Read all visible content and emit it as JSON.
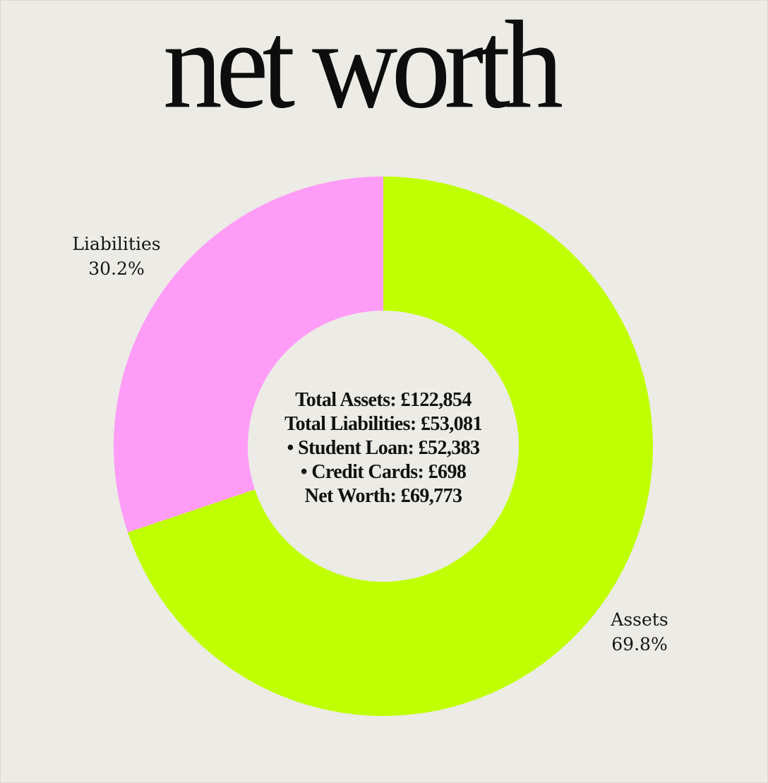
{
  "page": {
    "title": "net worth",
    "background": "#ecebe6"
  },
  "chart_data": {
    "type": "pie",
    "title": "net worth",
    "donut": true,
    "start_angle_deg": 0,
    "direction": "clockwise",
    "slices": [
      {
        "name": "Assets",
        "value": 122854,
        "percent_label": "69.8%",
        "color": "#c0ff00"
      },
      {
        "name": "Liabilities",
        "value": 53081,
        "percent_label": "30.2%",
        "color": "#ff9cf7"
      }
    ],
    "center_lines": [
      "Total Assets: £122,854",
      "Total Liabilities: £53,081",
      "• Student Loan: £52,383",
      "• Credit Cards: £698",
      "Net Worth: £69,773"
    ],
    "legend": "none"
  }
}
